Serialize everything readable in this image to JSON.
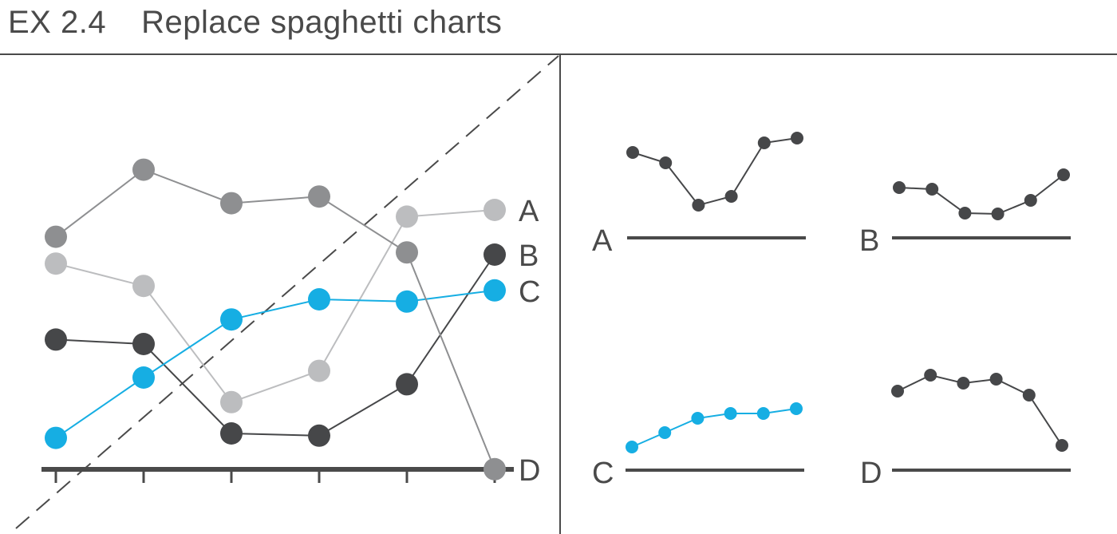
{
  "figure": {
    "code": "EX 2.4",
    "title": "Replace spaghetti charts"
  },
  "colors": {
    "dark": "#464749",
    "mid": "#8e8f91",
    "light": "#bcbdbf",
    "accent": "#16aee3",
    "text": "#4a4a4a"
  },
  "chart_data": [
    {
      "type": "line",
      "panel": "spaghetti",
      "title": "",
      "x": [
        1,
        2,
        3,
        4,
        5,
        6
      ],
      "ylim": [
        0,
        100
      ],
      "grid": false,
      "series": [
        {
          "name": "A",
          "color": "#bcbdbf",
          "values": [
            76,
            66,
            14,
            28,
            97,
            100
          ]
        },
        {
          "name": "B",
          "color": "#464749",
          "values": [
            42,
            40,
            0,
            -1,
            22,
            80
          ]
        },
        {
          "name": "C",
          "color": "#16aee3",
          "values": [
            -2,
            25,
            51,
            60,
            59,
            64
          ]
        },
        {
          "name": "D",
          "color": "#8e8f91",
          "values": [
            88,
            118,
            103,
            106,
            81,
            -16
          ]
        }
      ],
      "reference_line": "diagonal-dashed",
      "legend": "right"
    },
    {
      "type": "line",
      "panel": "small-multiples",
      "title": "",
      "x": [
        1,
        2,
        3,
        4,
        5,
        6
      ],
      "grid": false,
      "series": [
        {
          "name": "A",
          "color": "#464749",
          "values": [
            88,
            75,
            22,
            33,
            100,
            106
          ]
        },
        {
          "name": "B",
          "color": "#464749",
          "values": [
            44,
            42,
            12,
            11,
            28,
            60
          ]
        },
        {
          "name": "C",
          "color": "#16aee3",
          "values": [
            10,
            28,
            46,
            52,
            52,
            58
          ]
        },
        {
          "name": "D",
          "color": "#464749",
          "values": [
            80,
            100,
            90,
            95,
            75,
            12
          ]
        }
      ]
    }
  ]
}
